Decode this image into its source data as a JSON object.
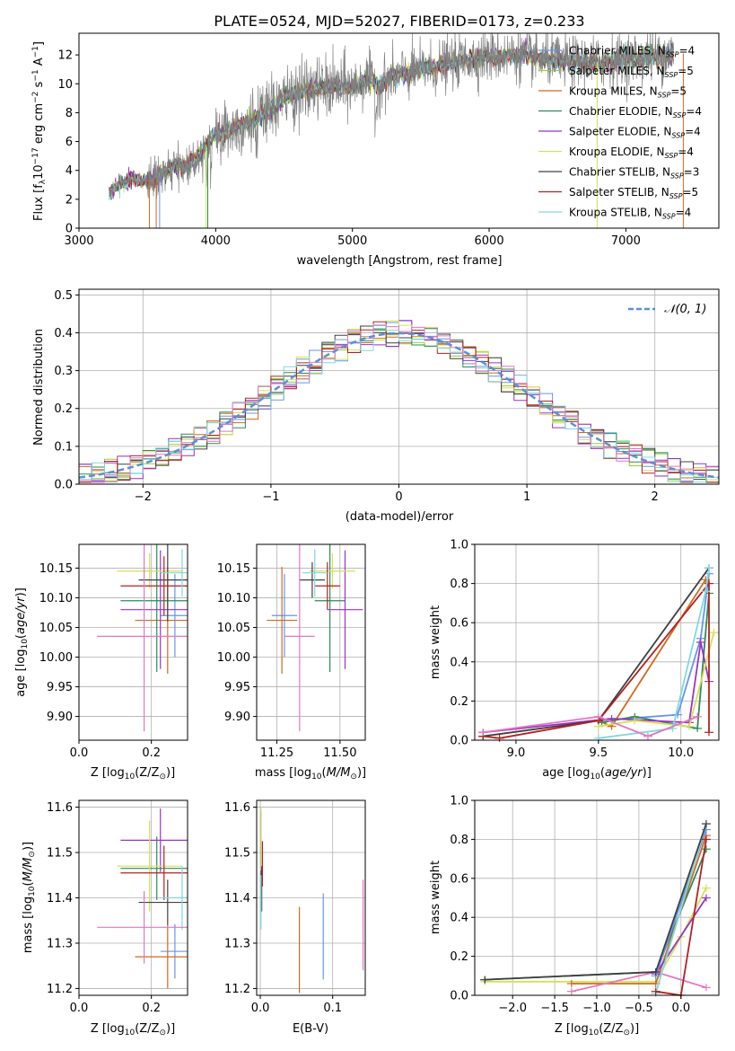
{
  "figure": {
    "title": "PLATE=0524, MJD=52027, FIBERID=0173, z=0.233"
  },
  "chart_data": [
    {
      "id": "spectrum",
      "type": "line",
      "xlabel": "wavelength [Angstrom, rest frame]",
      "ylabel": "Flux [f_λ 10^-17 erg cm^-2 s^-1 A^-1]",
      "xlim": [
        3000,
        7680
      ],
      "ylim": [
        0,
        13.5
      ],
      "xticks": [
        "3000",
        "4000",
        "5000",
        "6000",
        "7000"
      ],
      "yticks": [
        "0",
        "2",
        "4",
        "6",
        "8",
        "10",
        "12"
      ],
      "legend_position": "upper-right",
      "continuum": {
        "x": [
          3220,
          3300,
          3400,
          3500,
          3600,
          3700,
          3800,
          3900,
          3950,
          4000,
          4100,
          4200,
          4300,
          4400,
          4500,
          4600,
          4700,
          4800,
          4900,
          5000,
          5100,
          5200,
          5300,
          5400,
          5500,
          5600,
          5700,
          5800,
          5900,
          6000,
          6200,
          6400,
          6600,
          6800,
          7000,
          7200,
          7350
        ],
        "y": [
          2.4,
          3.1,
          3.4,
          3.2,
          3.7,
          4.2,
          4.3,
          5.3,
          6.1,
          6.4,
          6.8,
          7.2,
          7.6,
          8.2,
          9.0,
          9.4,
          9.6,
          9.7,
          9.8,
          9.8,
          10.3,
          9.9,
          10.5,
          10.7,
          11.0,
          11.1,
          11.4,
          11.6,
          11.8,
          11.9,
          12.0,
          11.7,
          11.5,
          11.5,
          11.7,
          11.9,
          12.1
        ]
      },
      "series": [
        {
          "name": "Chabrier MILES, N_SSP=4",
          "color": "#6495ed"
        },
        {
          "name": "Salpeter MILES, N_SSP=5",
          "color": "#9acd32"
        },
        {
          "name": "Kroupa MILES, N_SSP=5",
          "color": "#d2691e"
        },
        {
          "name": "Chabrier ELODIE, N_SSP=4",
          "color": "#2e8b57"
        },
        {
          "name": "Salpeter ELODIE, N_SSP=4",
          "color": "#9932cc"
        },
        {
          "name": "Kroupa ELODIE, N_SSP=4",
          "color": "#d4e157"
        },
        {
          "name": "Chabrier STELIB, N_SSP=3",
          "color": "#404040"
        },
        {
          "name": "Salpeter STELIB, N_SSP=5",
          "color": "#b22222"
        },
        {
          "name": "Kroupa STELIB, N_SSP=4",
          "color": "#80d8dd"
        }
      ],
      "data_color": "#808080"
    },
    {
      "id": "residuals",
      "type": "line",
      "xlabel": "(data-model)/error",
      "ylabel": "Normed distribution",
      "xlim": [
        -2.5,
        2.5
      ],
      "ylim": [
        0,
        0.515
      ],
      "xticks": [
        "−2",
        "−1",
        "0",
        "1",
        "2"
      ],
      "yticks": [
        "0.0",
        "0.1",
        "0.2",
        "0.3",
        "0.4",
        "0.5"
      ],
      "grid": true,
      "legend_position": "upper-right",
      "gaussian_label": "N(0,1)",
      "gaussian_color": "#5b8fd9"
    },
    {
      "id": "age_vs_Z",
      "type": "scatter",
      "xlabel": "Z [log10(Z/Z⊙)]",
      "ylabel": "age  [log10(age/yr)]",
      "xlim": [
        0,
        0.3
      ],
      "ylim": [
        9.86,
        10.19
      ],
      "xticks": [
        "0.0",
        "0.2"
      ],
      "yticks": [
        "9.90",
        "9.95",
        "10.00",
        "10.05",
        "10.10",
        "10.15"
      ],
      "grid": true,
      "points": [
        {
          "x": 0.265,
          "y": 10.07,
          "xerr": 0.04,
          "yerr": 0.07,
          "color": "#6495ed"
        },
        {
          "x": 0.245,
          "y": 10.062,
          "xerr": 0.09,
          "yerr": 0.09,
          "color": "#d2691e"
        },
        {
          "x": 0.215,
          "y": 10.095,
          "xerr": 0.1,
          "yerr": 0.12,
          "color": "#2e8b57"
        },
        {
          "x": 0.225,
          "y": 10.08,
          "xerr": 0.11,
          "yerr": 0.1,
          "color": "#9932cc"
        },
        {
          "x": 0.195,
          "y": 10.145,
          "xerr": 0.09,
          "yerr": 0.03,
          "color": "#d4e157"
        },
        {
          "x": 0.245,
          "y": 10.13,
          "xerr": 0.08,
          "yerr": 0.07,
          "color": "#404040"
        },
        {
          "x": 0.235,
          "y": 10.12,
          "xerr": 0.12,
          "yerr": 0.05,
          "color": "#b22222"
        },
        {
          "x": 0.285,
          "y": 10.142,
          "xerr": 0.06,
          "yerr": 0.04,
          "color": "#80d8dd"
        },
        {
          "x": 0.18,
          "y": 10.035,
          "xerr": 0.13,
          "yerr": 0.16,
          "color": "#e377c2"
        }
      ]
    },
    {
      "id": "age_vs_mass",
      "type": "scatter",
      "xlabel": "mass [log10(M/M⊙)]",
      "xlim": [
        11.17,
        11.6
      ],
      "ylim": [
        9.86,
        10.19
      ],
      "xticks": [
        "11.25",
        "11.50"
      ],
      "yticks": [
        "9.90",
        "9.95",
        "10.00",
        "10.05",
        "10.10",
        "10.15"
      ],
      "grid": true,
      "points": [
        {
          "x": 11.28,
          "y": 10.07,
          "xerr": 0.05,
          "yerr": 0.07,
          "color": "#6495ed"
        },
        {
          "x": 11.27,
          "y": 10.062,
          "xerr": 0.06,
          "yerr": 0.09,
          "color": "#d2691e"
        },
        {
          "x": 11.46,
          "y": 10.095,
          "xerr": 0.06,
          "yerr": 0.12,
          "color": "#2e8b57"
        },
        {
          "x": 11.52,
          "y": 10.08,
          "xerr": 0.07,
          "yerr": 0.1,
          "color": "#9932cc"
        },
        {
          "x": 11.47,
          "y": 10.145,
          "xerr": 0.09,
          "yerr": 0.03,
          "color": "#d4e157"
        },
        {
          "x": 11.39,
          "y": 10.13,
          "xerr": 0.05,
          "yerr": 0.03,
          "color": "#404040"
        },
        {
          "x": 11.45,
          "y": 10.12,
          "xerr": 0.05,
          "yerr": 0.04,
          "color": "#b22222"
        },
        {
          "x": 11.4,
          "y": 10.142,
          "xerr": 0.05,
          "yerr": 0.04,
          "color": "#80d8dd"
        },
        {
          "x": 11.34,
          "y": 10.035,
          "xerr": 0.06,
          "yerr": 0.16,
          "color": "#e377c2"
        }
      ]
    },
    {
      "id": "massweight_vs_age",
      "type": "line",
      "xlabel": "age  [log10(age/yr)]",
      "ylabel": "mass weight",
      "xlim": [
        8.75,
        10.23
      ],
      "ylim": [
        0,
        1.0
      ],
      "xticks": [
        "9.0",
        "9.5",
        "10.0"
      ],
      "yticks": [
        "0.0",
        "0.2",
        "0.4",
        "0.6",
        "0.8",
        "1.0"
      ],
      "grid": true,
      "series": [
        {
          "color": "#6495ed",
          "x": [
            9.5,
            9.98,
            10.12,
            10.17
          ],
          "y": [
            0.1,
            0.13,
            0.52,
            0.85
          ]
        },
        {
          "color": "#d2691e",
          "x": [
            8.8,
            9.5,
            9.58,
            10.15
          ],
          "y": [
            0.02,
            0.1,
            0.07,
            0.82
          ]
        },
        {
          "color": "#2e8b57",
          "x": [
            9.52,
            9.72,
            10.1,
            10.17
          ],
          "y": [
            0.09,
            0.12,
            0.06,
            0.75
          ]
        },
        {
          "color": "#9932cc",
          "x": [
            8.8,
            9.58,
            10.05,
            10.12,
            10.17
          ],
          "y": [
            0.04,
            0.11,
            0.09,
            0.5,
            0.3
          ]
        },
        {
          "color": "#d4e157",
          "x": [
            9.5,
            9.72,
            10.05,
            10.2
          ],
          "y": [
            0.07,
            0.1,
            0.07,
            0.55
          ]
        },
        {
          "color": "#404040",
          "x": [
            8.8,
            9.5,
            10.17
          ],
          "y": [
            0.02,
            0.1,
            0.88
          ]
        },
        {
          "color": "#b22222",
          "x": [
            8.8,
            8.9,
            9.5,
            10.17,
            10.17
          ],
          "y": [
            0.02,
            0.01,
            0.1,
            0.8,
            0.04
          ]
        },
        {
          "color": "#80d8dd",
          "x": [
            9.5,
            9.95,
            10.15,
            10.17
          ],
          "y": [
            0.01,
            0.06,
            0.76,
            0.88
          ]
        },
        {
          "color": "#e377c2",
          "x": [
            8.8,
            9.5,
            9.8,
            10.1
          ],
          "y": [
            0.04,
            0.12,
            0.02,
            0.12
          ]
        }
      ]
    },
    {
      "id": "mass_vs_Z",
      "type": "scatter",
      "xlabel": "Z [log10(Z/Z⊙)]",
      "ylabel": "mass [log10(M/M⊙)]",
      "xlim": [
        0,
        0.3
      ],
      "ylim": [
        11.185,
        11.615
      ],
      "xticks": [
        "0.0",
        "0.2"
      ],
      "yticks": [
        "11.2",
        "11.3",
        "11.4",
        "11.5",
        "11.6"
      ],
      "grid": true,
      "points": [
        {
          "x": 0.265,
          "y": 11.282,
          "xerr": 0.04,
          "yerr": 0.06,
          "color": "#6495ed"
        },
        {
          "x": 0.245,
          "y": 11.27,
          "xerr": 0.09,
          "yerr": 0.07,
          "color": "#d2691e"
        },
        {
          "x": 0.215,
          "y": 11.465,
          "xerr": 0.1,
          "yerr": 0.07,
          "color": "#2e8b57"
        },
        {
          "x": 0.225,
          "y": 11.527,
          "xerr": 0.11,
          "yerr": 0.07,
          "color": "#9932cc"
        },
        {
          "x": 0.195,
          "y": 11.47,
          "xerr": 0.09,
          "yerr": 0.1,
          "color": "#d4e157"
        },
        {
          "x": 0.245,
          "y": 11.39,
          "xerr": 0.08,
          "yerr": 0.05,
          "color": "#404040"
        },
        {
          "x": 0.235,
          "y": 11.455,
          "xerr": 0.12,
          "yerr": 0.06,
          "color": "#b22222"
        },
        {
          "x": 0.285,
          "y": 11.4,
          "xerr": 0.06,
          "yerr": 0.07,
          "color": "#80d8dd"
        },
        {
          "x": 0.18,
          "y": 11.335,
          "xerr": 0.13,
          "yerr": 0.08,
          "color": "#e377c2"
        }
      ]
    },
    {
      "id": "mass_vs_EBV",
      "type": "scatter",
      "xlabel": "E(B-V)",
      "xlim": [
        -0.005,
        0.145
      ],
      "ylim": [
        11.185,
        11.615
      ],
      "xticks": [
        "0.0",
        "0.1"
      ],
      "yticks": [
        "11.2",
        "11.3",
        "11.4",
        "11.5",
        "11.6"
      ],
      "grid": true,
      "points": [
        {
          "x": 0.087,
          "y": 11.315,
          "yerr": 0.095,
          "color": "#6495ed"
        },
        {
          "x": 0.054,
          "y": 11.285,
          "yerr": 0.095,
          "color": "#d2691e"
        },
        {
          "x": 0.001,
          "y": 11.45,
          "yerr": 0.08,
          "color": "#2e8b57"
        },
        {
          "x": 0.001,
          "y": 11.52,
          "yerr": 0.07,
          "color": "#9932cc"
        },
        {
          "x": 0.001,
          "y": 11.53,
          "yerr": 0.07,
          "color": "#d4e157"
        },
        {
          "x": 0.002,
          "y": 11.42,
          "yerr": 0.05,
          "color": "#404040"
        },
        {
          "x": 0.003,
          "y": 11.475,
          "yerr": 0.05,
          "color": "#b22222"
        },
        {
          "x": 0.001,
          "y": 11.39,
          "yerr": 0.06,
          "color": "#80d8dd"
        },
        {
          "x": 0.142,
          "y": 11.34,
          "yerr": 0.1,
          "color": "#e377c2"
        }
      ]
    },
    {
      "id": "massweight_vs_Z",
      "type": "line",
      "xlabel": "Z [log10(Z/Z⊙)]",
      "ylabel": "mass weight",
      "xlim": [
        -2.45,
        0.45
      ],
      "ylim": [
        0,
        1.0
      ],
      "xticks": [
        "−2.0",
        "−1.5",
        "−1.0",
        "−0.5",
        "0.0"
      ],
      "yticks": [
        "0.0",
        "0.2",
        "0.4",
        "0.6",
        "0.8",
        "1.0"
      ],
      "grid": true,
      "series": [
        {
          "color": "#d4e157",
          "x": [
            -2.33,
            -0.3,
            0.0,
            0.3
          ],
          "y": [
            0.07,
            0.07,
            0.3,
            0.55
          ]
        },
        {
          "color": "#2e8b57",
          "x": [
            -2.33,
            -0.3,
            0.3
          ],
          "y": [
            0.08,
            0.12,
            0.75
          ]
        },
        {
          "color": "#d2691e",
          "x": [
            -1.3,
            -0.3,
            0.3
          ],
          "y": [
            0.06,
            0.06,
            0.82
          ]
        },
        {
          "color": "#e377c2",
          "x": [
            -1.3,
            -0.3,
            0.3
          ],
          "y": [
            0.02,
            0.12,
            0.04
          ]
        },
        {
          "color": "#9932cc",
          "x": [
            -0.3,
            0.3
          ],
          "y": [
            0.11,
            0.5
          ]
        },
        {
          "color": "#6495ed",
          "x": [
            -0.3,
            0.3
          ],
          "y": [
            0.1,
            0.85
          ]
        },
        {
          "color": "#80d8dd",
          "x": [
            -0.3,
            0.3
          ],
          "y": [
            0.01,
            0.88
          ]
        },
        {
          "color": "#b22222",
          "x": [
            -0.3,
            0.0,
            0.3
          ],
          "y": [
            0.02,
            0.0,
            0.8
          ]
        },
        {
          "color": "#404040",
          "x": [
            -2.33,
            -0.3,
            0.3
          ],
          "y": [
            0.08,
            0.12,
            0.88
          ]
        }
      ]
    }
  ]
}
